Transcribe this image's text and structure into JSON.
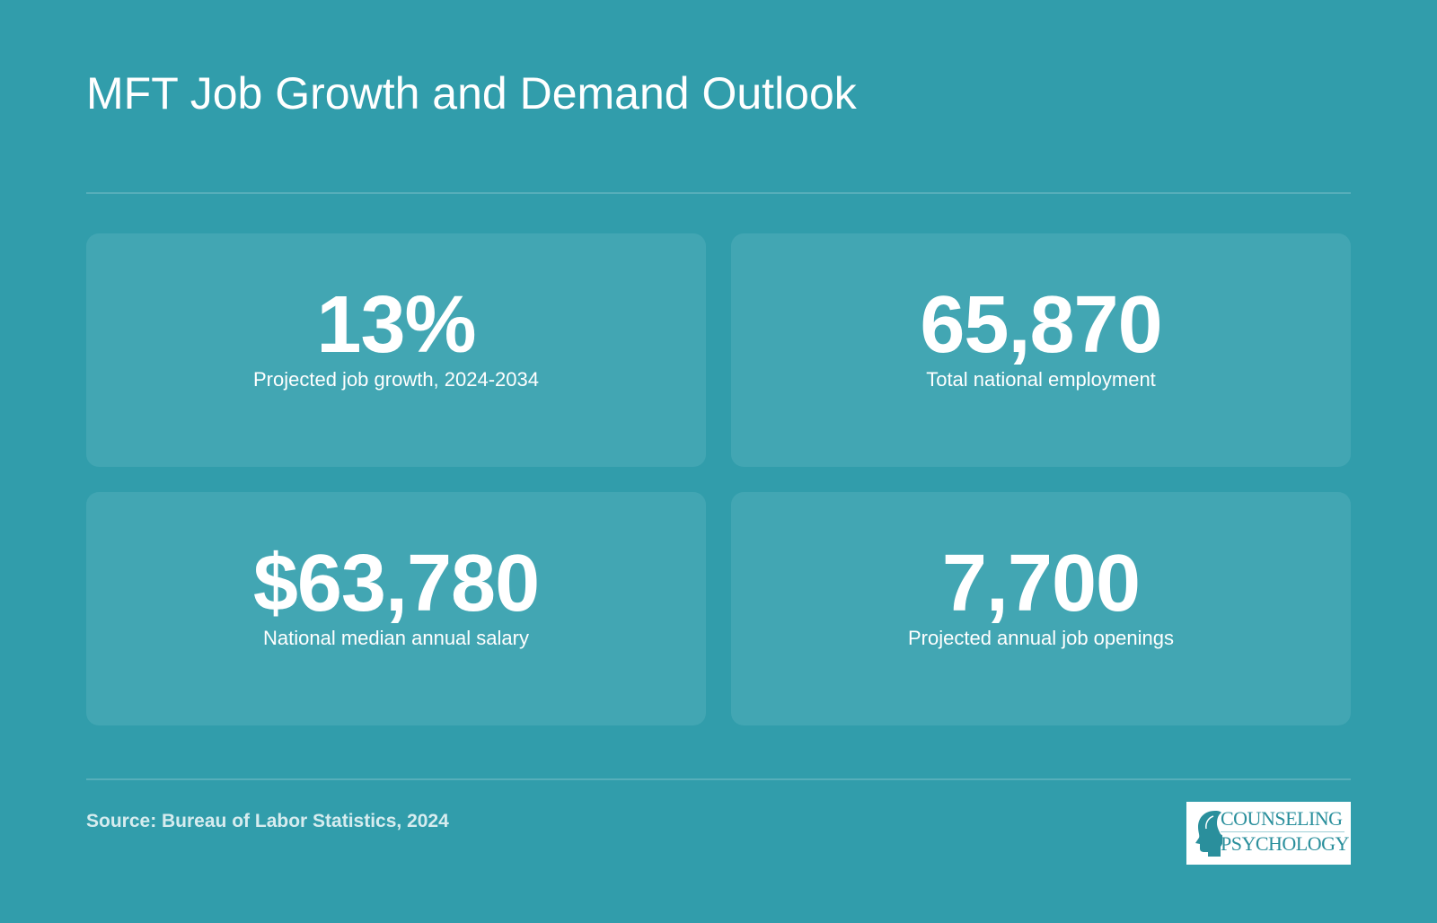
{
  "header": {
    "title": "MFT Job Growth and Demand Outlook"
  },
  "stats": [
    {
      "value": "13%",
      "label": "Projected job growth, 2024-2034"
    },
    {
      "value": "65,870",
      "label": "Total national employment"
    },
    {
      "value": "$63,780",
      "label": "National median annual salary"
    },
    {
      "value": "7,700",
      "label": "Projected annual job openings"
    }
  ],
  "footer": {
    "source": "Source: Bureau of Labor Statistics, 2024",
    "logo": {
      "line1": "COUNSELING",
      "line2": "PSYCHOLOGY",
      "icon": "head-profile-icon"
    }
  },
  "colors": {
    "background": "#319dab",
    "card": "#42a6b3",
    "text": "#ffffff",
    "logo_text": "#2a8f9c"
  }
}
